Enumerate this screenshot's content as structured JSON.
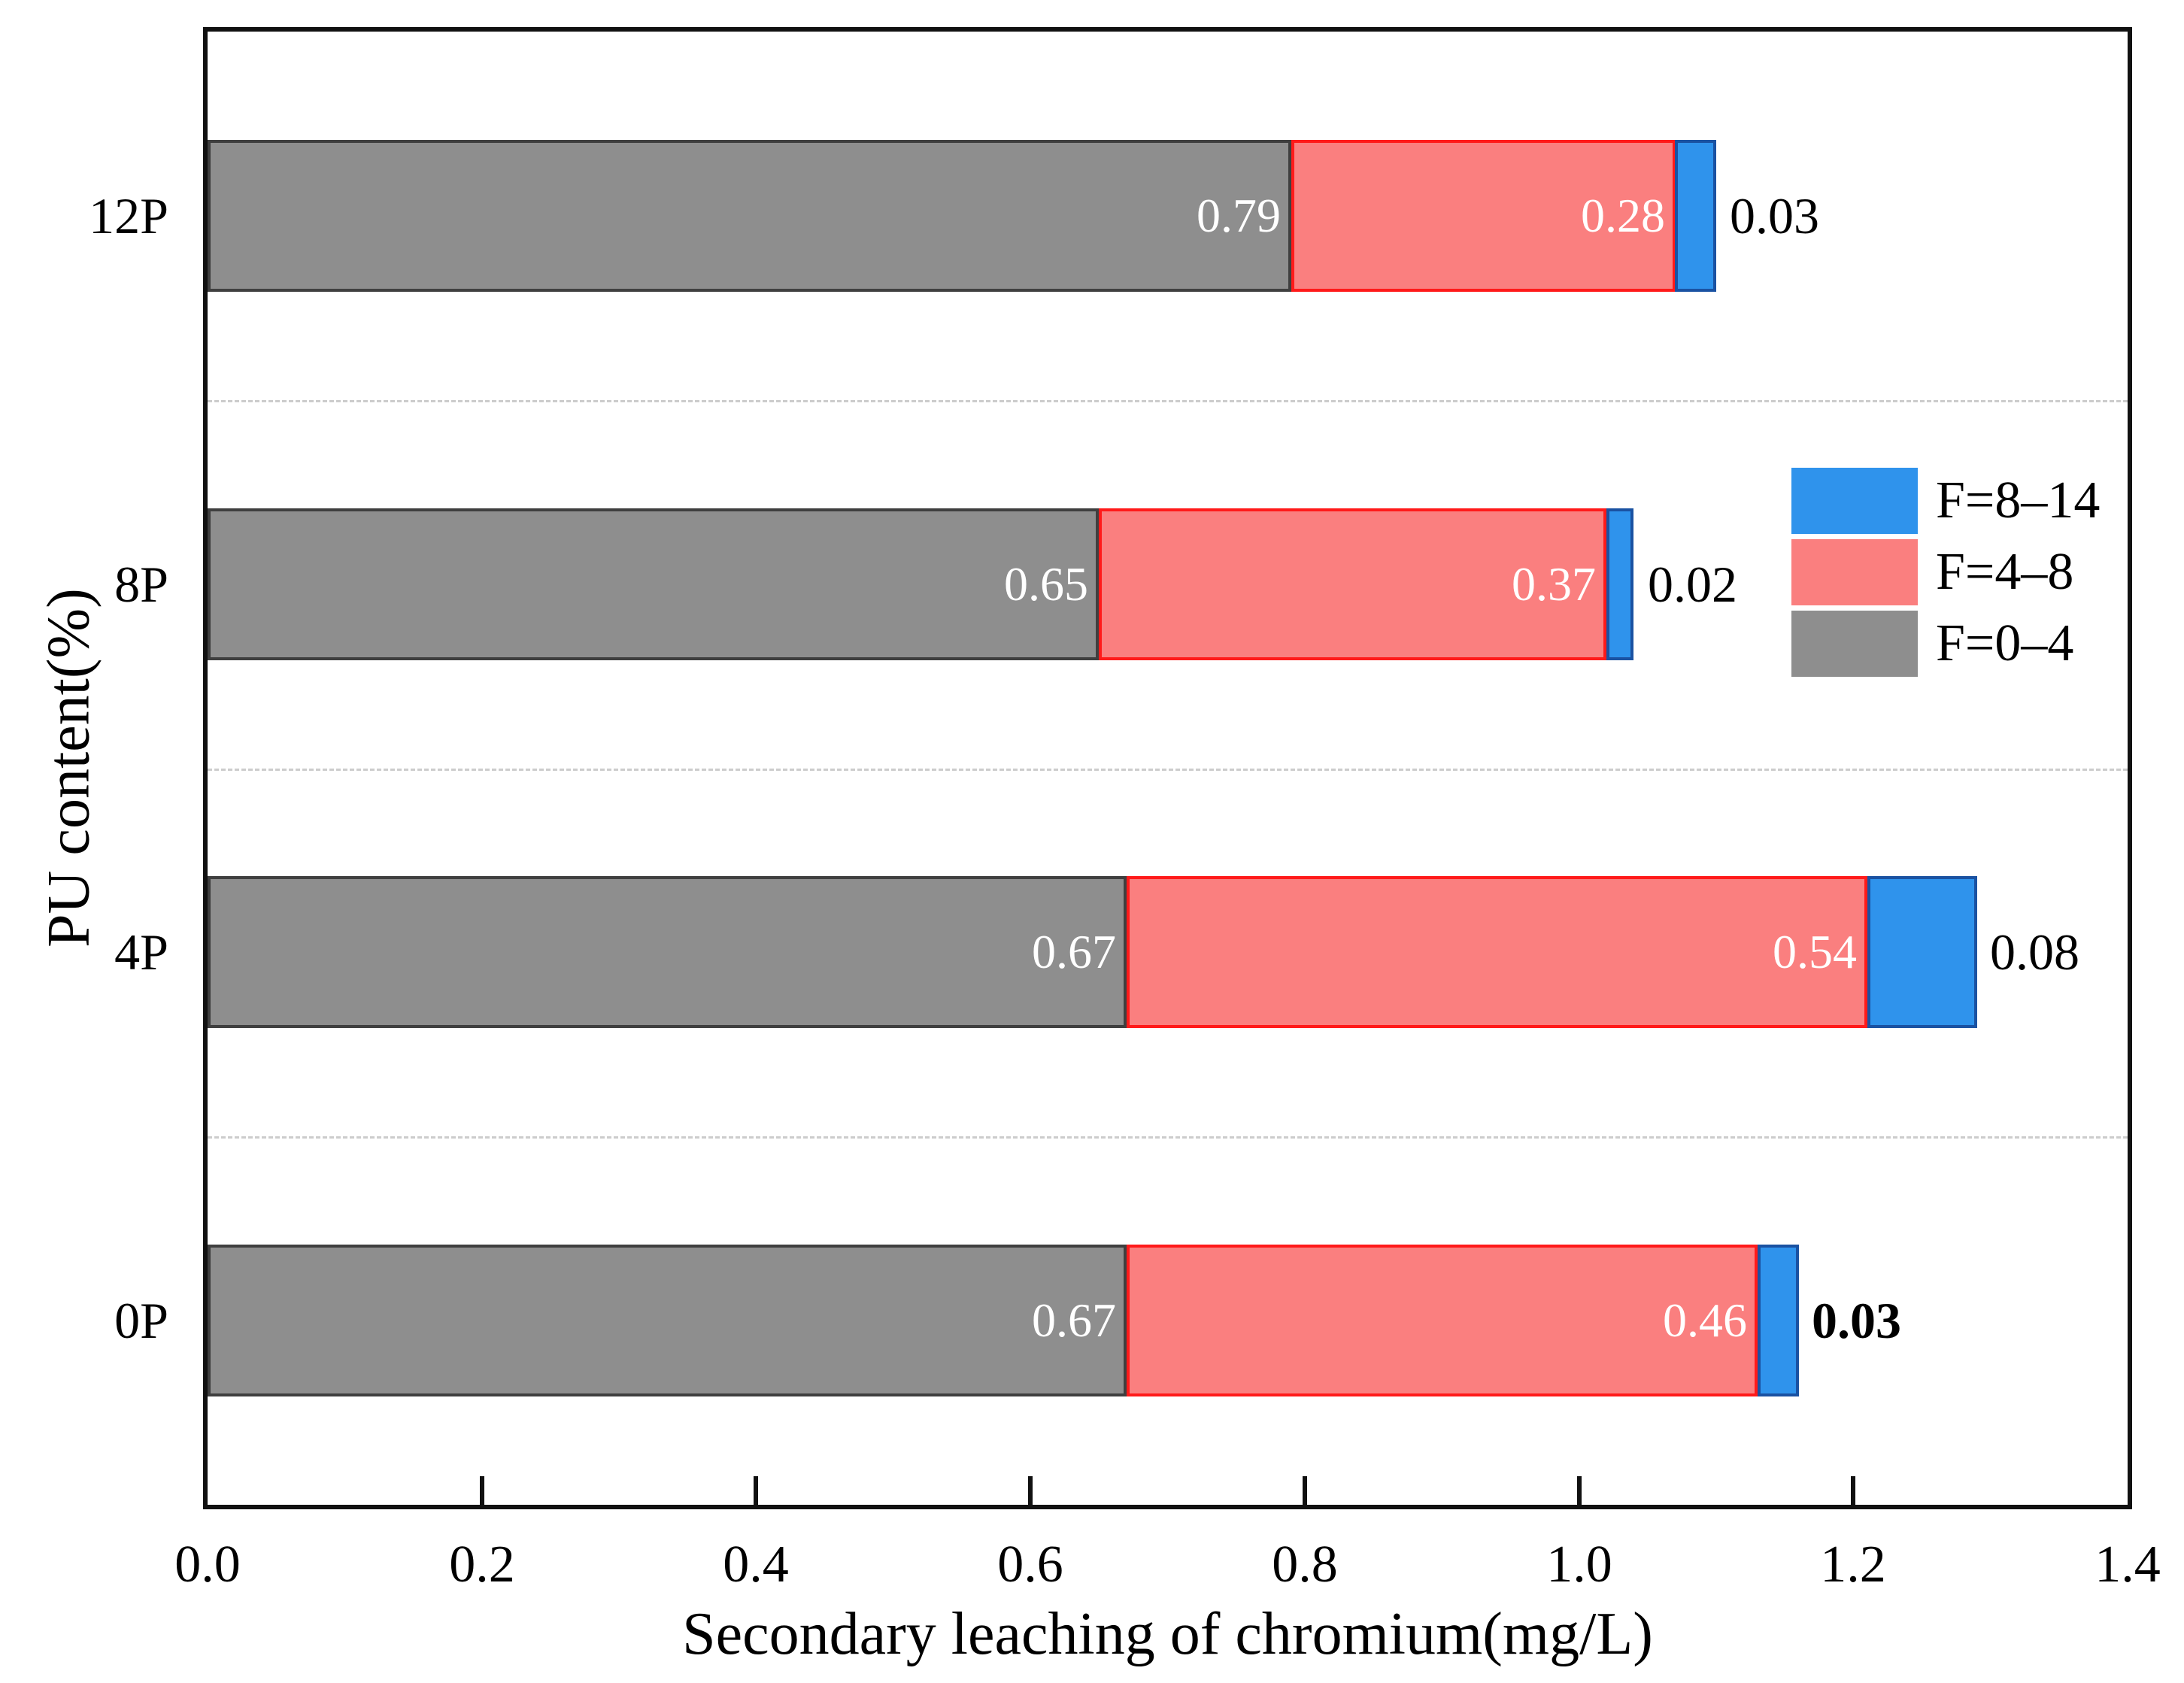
{
  "chart_data": {
    "type": "bar",
    "orientation": "horizontal",
    "stacked": true,
    "xlabel": "Secondary leaching of chromium(mg/L)",
    "ylabel": "PU content(%)",
    "xlim": [
      0,
      1.4
    ],
    "xticks": [
      0.0,
      0.2,
      0.4,
      0.6,
      0.8,
      1.0,
      1.2,
      1.4
    ],
    "xtick_labels": [
      "0.0",
      "0.2",
      "0.4",
      "0.6",
      "0.8",
      "1.0",
      "1.2",
      "1.4"
    ],
    "categories_top_to_bottom": [
      "12P",
      "8P",
      "4P",
      "0P"
    ],
    "series": [
      {
        "name": "F=0–4",
        "fill_color": "#8e8e8e",
        "edge_color": "#3f3f3f",
        "label_color": "#ffffff",
        "label_outside": false,
        "values": [
          0.79,
          0.65,
          0.67,
          0.67
        ],
        "labels": [
          "0.79",
          "0.65",
          "0.67",
          "0.67"
        ]
      },
      {
        "name": "F=4–8",
        "fill_color": "#fa7f7f",
        "edge_color": "#ff1a1a",
        "label_color": "#ffffff",
        "label_outside": false,
        "values": [
          0.28,
          0.37,
          0.54,
          0.46
        ],
        "labels": [
          "0.28",
          "0.37",
          "0.54",
          "0.46"
        ]
      },
      {
        "name": "F=8–14",
        "fill_color": "#2f93ec",
        "edge_color": "#1a52a2",
        "label_color": "#000000",
        "label_outside": true,
        "values": [
          0.03,
          0.02,
          0.08,
          0.03
        ],
        "labels": [
          "0.03",
          "0.02",
          "0.08",
          "0.03"
        ],
        "label_bold": [
          false,
          false,
          false,
          true
        ]
      }
    ],
    "legend": {
      "position": "upper right",
      "entries_top_to_bottom": [
        "F=8–14",
        "F=4–8",
        "F=0–4"
      ]
    },
    "grid": {
      "horizontal_dashed_separators": true,
      "separator_color": "#cccccc"
    }
  }
}
